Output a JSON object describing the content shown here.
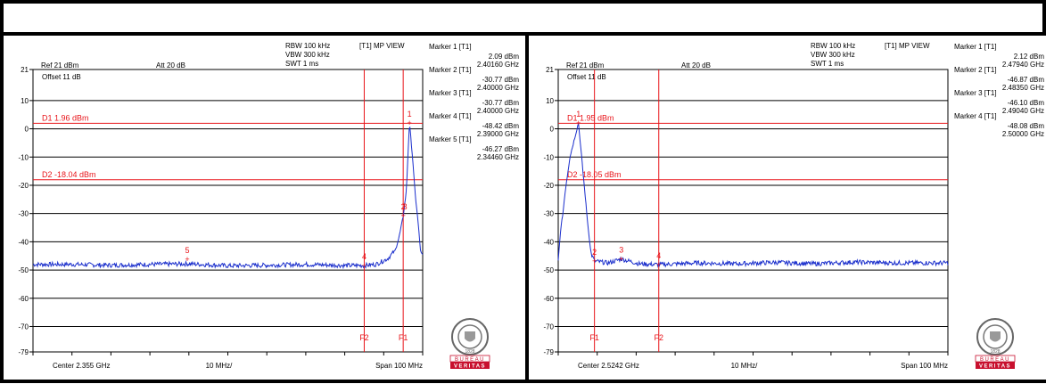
{
  "chart_data": [
    {
      "type": "line",
      "header": {
        "rbw": "RBW 100 kHz",
        "vbw": "VBW 300 kHz",
        "swt": "SWT 1 ms",
        "mode": "[T1] MP VIEW",
        "ref": "Ref 21 dBm",
        "att": "Att  20 dB",
        "offset": "Offset 11 dB"
      },
      "yticks": [
        "21",
        "10",
        "0",
        "-10",
        "-20",
        "-30",
        "-40",
        "-50",
        "-60",
        "-70",
        "-79"
      ],
      "ylim": [
        -79,
        21
      ],
      "xlim": [
        2.305,
        2.405
      ],
      "footer": {
        "center": "Center 2.355 GHz",
        "div": "10 MHz/",
        "span": "Span 100 MHz"
      },
      "display_lines": [
        {
          "label": "D1 1.96 dBm",
          "value": 1.96
        },
        {
          "label": "D2 -18.04 dBm",
          "value": -18.04
        }
      ],
      "freq_lines": [
        {
          "label": "F2",
          "x": 2.39
        },
        {
          "label": "F1",
          "x": 2.4
        }
      ],
      "markers": [
        {
          "title": "Marker 1 [T1]",
          "level": "2.09 dBm",
          "freq": "2.40160 GHz",
          "id": "1",
          "x": 2.4016,
          "y": 2.09
        },
        {
          "title": "Marker 2 [T1]",
          "level": "-30.77 dBm",
          "freq": "2.40000 GHz",
          "id": "2",
          "x": 2.4,
          "y": -30.77
        },
        {
          "title": "Marker 3 [T1]",
          "level": "-30.77 dBm",
          "freq": "2.40000 GHz",
          "id": "3",
          "x": 2.4,
          "y": -30.77
        },
        {
          "title": "Marker 4 [T1]",
          "level": "-48.42 dBm",
          "freq": "2.39000 GHz",
          "id": "4",
          "x": 2.39,
          "y": -48.42
        },
        {
          "title": "Marker 5 [T1]",
          "level": "-46.27 dBm",
          "freq": "2.34460 GHz",
          "id": "5",
          "x": 2.3446,
          "y": -46.27
        }
      ],
      "series": [
        {
          "values": [
            [
              2.305,
              -48
            ],
            [
              2.315,
              -48
            ],
            [
              2.325,
              -48.3
            ],
            [
              2.335,
              -48
            ],
            [
              2.345,
              -47.8
            ],
            [
              2.355,
              -48.5
            ],
            [
              2.365,
              -48.3
            ],
            [
              2.375,
              -48
            ],
            [
              2.385,
              -48.4
            ],
            [
              2.39,
              -48.4
            ],
            [
              2.393,
              -48
            ],
            [
              2.396,
              -46
            ],
            [
              2.398,
              -43
            ],
            [
              2.399,
              -38
            ],
            [
              2.4,
              -31
            ],
            [
              2.4008,
              -22
            ],
            [
              2.4016,
              2.09
            ],
            [
              2.4024,
              -10
            ],
            [
              2.403,
              -22
            ],
            [
              2.4036,
              -30
            ],
            [
              2.404,
              -36
            ],
            [
              2.4045,
              -44
            ],
            [
              2.405,
              -45
            ]
          ]
        }
      ],
      "logo": {
        "top": "BUREAU",
        "bottom": "VERITAS",
        "year": "1828"
      }
    },
    {
      "type": "line",
      "header": {
        "rbw": "RBW 100 kHz",
        "vbw": "VBW 300 kHz",
        "swt": "SWT 1 ms",
        "mode": "[T1] MP VIEW",
        "ref": "Ref 21 dBm",
        "att": "Att  20 dB",
        "offset": "Offset 11 dB"
      },
      "yticks": [
        "21",
        "10",
        "0",
        "-10",
        "-20",
        "-30",
        "-40",
        "-50",
        "-60",
        "-70",
        "-79"
      ],
      "ylim": [
        -79,
        21
      ],
      "xlim": [
        2.4742,
        2.5742
      ],
      "footer": {
        "center": "Center 2.5242 GHz",
        "div": "10 MHz/",
        "span": "Span 100 MHz"
      },
      "display_lines": [
        {
          "label": "D1 1.95 dBm",
          "value": 1.95
        },
        {
          "label": "D2 -18.05 dBm",
          "value": -18.05
        }
      ],
      "freq_lines": [
        {
          "label": "F1",
          "x": 2.4835
        },
        {
          "label": "F2",
          "x": 2.5
        }
      ],
      "markers": [
        {
          "title": "Marker 1 [T1]",
          "level": "2.12 dBm",
          "freq": "2.47940 GHz",
          "id": "1",
          "x": 2.4794,
          "y": 2.12
        },
        {
          "title": "Marker 2 [T1]",
          "level": "-46.87 dBm",
          "freq": "2.48350 GHz",
          "id": "2",
          "x": 2.4835,
          "y": -46.87
        },
        {
          "title": "Marker 3 [T1]",
          "level": "-46.10 dBm",
          "freq": "2.49040 GHz",
          "id": "3",
          "x": 2.4904,
          "y": -46.1
        },
        {
          "title": "Marker 4 [T1]",
          "level": "-48.08 dBm",
          "freq": "2.50000 GHz",
          "id": "4",
          "x": 2.5,
          "y": -48.08
        }
      ],
      "series": [
        {
          "values": [
            [
              2.4742,
              -47
            ],
            [
              2.4748,
              -36
            ],
            [
              2.4754,
              -30
            ],
            [
              2.476,
              -22
            ],
            [
              2.4772,
              -10
            ],
            [
              2.4794,
              2.12
            ],
            [
              2.481,
              -22
            ],
            [
              2.4818,
              -34
            ],
            [
              2.4826,
              -44
            ],
            [
              2.4835,
              -46.87
            ],
            [
              2.487,
              -47.5
            ],
            [
              2.4904,
              -46.1
            ],
            [
              2.495,
              -47.8
            ],
            [
              2.5,
              -48.08
            ],
            [
              2.51,
              -47.5
            ],
            [
              2.52,
              -47.8
            ],
            [
              2.53,
              -47.3
            ],
            [
              2.54,
              -47.8
            ],
            [
              2.55,
              -47.2
            ],
            [
              2.56,
              -47.5
            ],
            [
              2.5742,
              -47.5
            ]
          ]
        }
      ],
      "logo": {
        "top": "BUREAU",
        "bottom": "VERITAS",
        "year": "1828"
      }
    }
  ]
}
